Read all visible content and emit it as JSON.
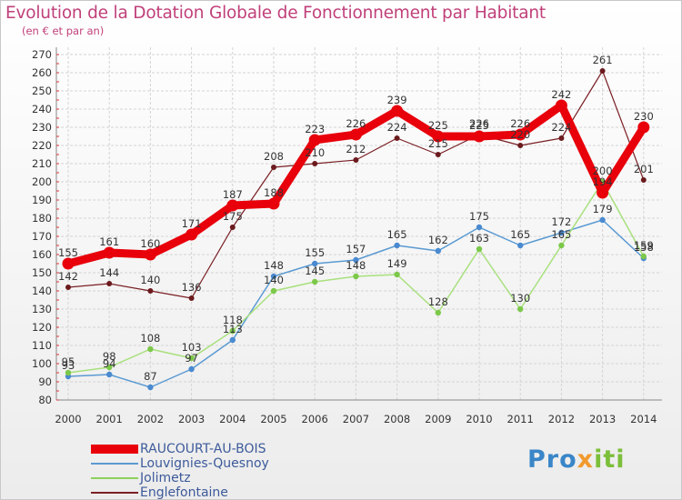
{
  "header": {
    "title": "Evolution de la Dotation Globale de Fonctionnement par Habitant",
    "subtitle": "(en € et par an)"
  },
  "logo": {
    "text_1": "Pro",
    "text_2": "x",
    "text_3": "iti"
  },
  "chart_data": {
    "type": "line",
    "title": "Evolution de la Dotation Globale de Fonctionnement par Habitant",
    "subtitle": "(en € et par an)",
    "xlabel": "",
    "ylabel": "",
    "ylim": [
      80,
      270
    ],
    "y_ticks": [
      80,
      90,
      100,
      110,
      120,
      130,
      140,
      150,
      160,
      170,
      180,
      190,
      200,
      210,
      220,
      230,
      240,
      250,
      260,
      270
    ],
    "categories": [
      "2000",
      "2001",
      "2002",
      "2003",
      "2004",
      "2005",
      "2006",
      "2007",
      "2008",
      "2009",
      "2010",
      "2011",
      "2012",
      "2013",
      "2014"
    ],
    "grid": true,
    "legend_position": "bottom-left",
    "series": [
      {
        "name": "RAUCOURT-AU-BOIS",
        "color": "#e8000b",
        "values": [
          155,
          161,
          160,
          171,
          187,
          188,
          223,
          226,
          239,
          225,
          225,
          226,
          242,
          194,
          230
        ]
      },
      {
        "name": "Louvignies-Quesnoy",
        "color": "#5a9ad2",
        "values": [
          93,
          94,
          87,
          97,
          113,
          148,
          155,
          157,
          165,
          162,
          175,
          165,
          172,
          179,
          158
        ]
      },
      {
        "name": "Jolimetz",
        "color": "#8ed05c",
        "values": [
          95,
          98,
          108,
          103,
          118,
          140,
          145,
          148,
          149,
          128,
          163,
          130,
          165,
          200,
          159
        ]
      },
      {
        "name": "Englefontaine",
        "color": "#7a1f24",
        "values": [
          142,
          144,
          140,
          136,
          175,
          208,
          210,
          212,
          224,
          215,
          226,
          220,
          224,
          261,
          201
        ]
      }
    ]
  }
}
